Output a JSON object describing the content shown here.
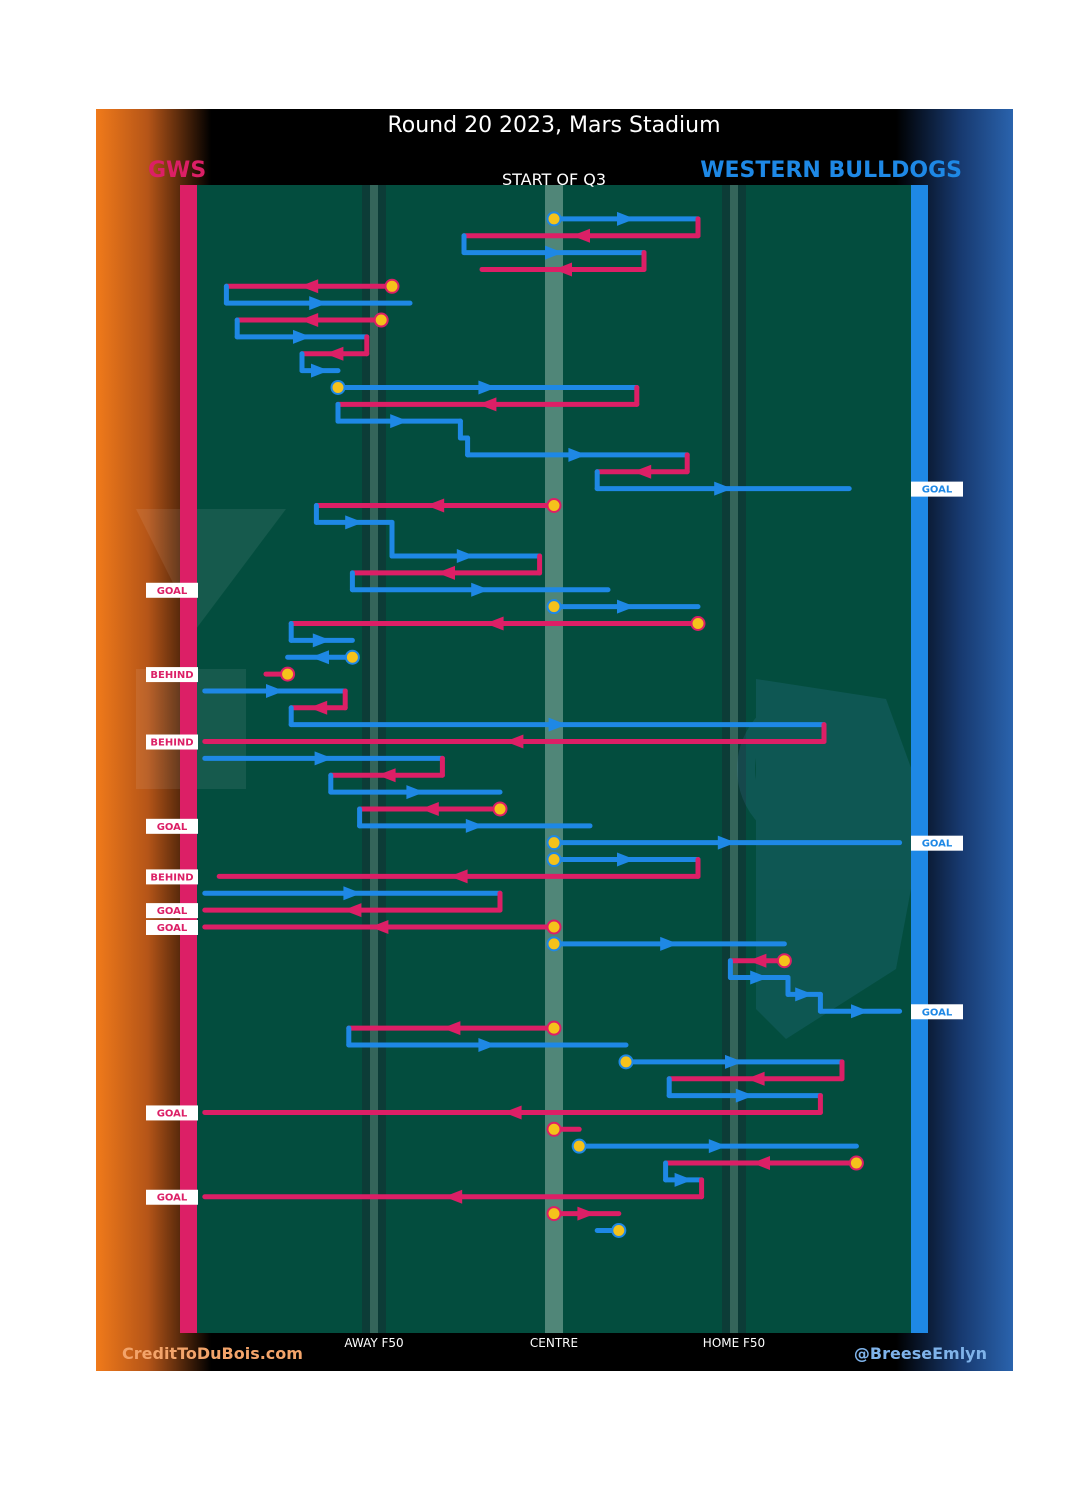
{
  "title": "Round 20 2023, Mars Stadium",
  "home_team": "GWS",
  "away_team": "WESTERN BULLDOGS",
  "start_label": "START OF Q3",
  "credit_left": "CreditToDuBois.com",
  "credit_right": "@BreeseEmlyn",
  "colors": {
    "gws": "#dc1f66",
    "bulldogs": "#1e88e5",
    "field": "#034d3e",
    "ball": "#f5c21b",
    "left_bg": "#f07a1a",
    "right_bg": "#1f5aa6"
  },
  "chart_data": {
    "type": "line",
    "title": "Round 20 2023, Mars Stadium",
    "subtitle": "START OF Q3",
    "xlabel": "",
    "ylabel": "",
    "x_axis_labels": [
      {
        "label": "AWAY F50",
        "x": 50
      },
      {
        "label": "CENTRE",
        "x": 0
      },
      {
        "label": "HOME F50",
        "x": -50
      }
    ],
    "xlim": [
      -100,
      100
    ],
    "y_order": "chain order, top to bottom",
    "series": [
      {
        "name": "GWS",
        "color": "#dc1f66"
      },
      {
        "name": "WESTERN BULLDOGS",
        "color": "#1e88e5"
      }
    ],
    "chains": [
      {
        "start_ball": true,
        "segs": [
          [
            "B",
            0,
            -40,
            1
          ],
          [
            "G",
            -40,
            25,
            2
          ],
          [
            "B",
            25,
            -25,
            3
          ],
          [
            "G",
            -25,
            20,
            4
          ]
        ]
      },
      {
        "start_ball": true,
        "segs": [
          [
            "G",
            45,
            91,
            5
          ],
          [
            "B",
            91,
            40,
            6
          ]
        ]
      },
      {
        "start_ball": true,
        "segs": [
          [
            "G",
            48,
            88,
            7
          ],
          [
            "B",
            88,
            52,
            8
          ],
          [
            "G",
            52,
            70,
            9
          ],
          [
            "B",
            70,
            60,
            10
          ]
        ]
      },
      {
        "start_ball": true,
        "segs": [
          [
            "B",
            60,
            -23,
            11
          ],
          [
            "G",
            -23,
            60,
            12
          ],
          [
            "B",
            60,
            26,
            13
          ],
          [
            "B",
            26,
            24,
            14
          ],
          [
            "B",
            24,
            -37,
            15
          ],
          [
            "G",
            -37,
            -12,
            16
          ],
          [
            "B",
            -12,
            -82,
            17
          ]
        ],
        "end": {
          "label": "GOAL",
          "team": "B"
        }
      },
      {
        "start_ball": true,
        "segs": [
          [
            "G",
            0,
            66,
            18
          ],
          [
            "B",
            66,
            45,
            19
          ],
          [
            "B",
            45,
            45,
            20
          ],
          [
            "B",
            45,
            4,
            21
          ],
          [
            "G",
            4,
            56,
            22
          ],
          [
            "B",
            56,
            -15,
            23
          ]
        ],
        "end": {
          "label": "GOAL",
          "team": "G"
        }
      },
      {
        "start_ball": true,
        "segs": [
          [
            "B",
            0,
            -40,
            24
          ]
        ]
      },
      {
        "start_ball": true,
        "segs": [
          [
            "G",
            -40,
            73,
            25
          ],
          [
            "B",
            73,
            56,
            26
          ]
        ]
      },
      {
        "start_ball": true,
        "segs": [
          [
            "B",
            56,
            74,
            27
          ]
        ]
      },
      {
        "start_ball": true,
        "segs": [
          [
            "G",
            74,
            80,
            28
          ]
        ],
        "end": {
          "label": "BEHIND",
          "team": "G"
        }
      },
      {
        "start_ball": false,
        "segs": [
          [
            "B",
            97,
            58,
            29
          ],
          [
            "G",
            58,
            73,
            30
          ],
          [
            "B",
            73,
            -75,
            31
          ],
          [
            "G",
            -75,
            97,
            32
          ]
        ],
        "end": {
          "label": "BEHIND",
          "team": "G"
        }
      },
      {
        "start_ball": false,
        "segs": [
          [
            "B",
            97,
            31,
            33
          ],
          [
            "G",
            31,
            62,
            34
          ],
          [
            "B",
            62,
            15,
            35
          ]
        ]
      },
      {
        "start_ball": true,
        "segs": [
          [
            "G",
            15,
            54,
            36
          ],
          [
            "B",
            54,
            -10,
            37
          ]
        ],
        "end": {
          "label": "GOAL",
          "team": "G"
        }
      },
      {
        "start_ball": true,
        "segs": [
          [
            "B",
            0,
            -96,
            38
          ]
        ],
        "end": {
          "label": "GOAL",
          "team": "B"
        }
      },
      {
        "start_ball": true,
        "segs": [
          [
            "B",
            0,
            -40,
            39
          ],
          [
            "G",
            -40,
            93,
            40
          ]
        ],
        "end": {
          "label": "BEHIND",
          "team": "G"
        }
      },
      {
        "start_ball": false,
        "segs": [
          [
            "B",
            97,
            15,
            41
          ],
          [
            "G",
            15,
            97,
            42
          ]
        ],
        "end": {
          "label": "GOAL",
          "team": "G"
        }
      },
      {
        "start_ball": true,
        "segs": [
          [
            "G",
            0,
            97,
            43
          ]
        ],
        "end": {
          "label": "GOAL",
          "team": "G"
        }
      },
      {
        "start_ball": true,
        "segs": [
          [
            "B",
            0,
            -64,
            44
          ]
        ]
      },
      {
        "start_ball": true,
        "segs": [
          [
            "G",
            -64,
            -49,
            45
          ],
          [
            "B",
            -49,
            -65,
            46
          ],
          [
            "B",
            -65,
            -74,
            47
          ],
          [
            "B",
            -74,
            -96,
            48
          ]
        ],
        "end": {
          "label": "GOAL",
          "team": "B"
        }
      },
      {
        "start_ball": true,
        "segs": [
          [
            "G",
            0,
            57,
            49
          ],
          [
            "B",
            57,
            -20,
            50
          ]
        ]
      },
      {
        "start_ball": true,
        "segs": [
          [
            "B",
            -20,
            -80,
            51
          ],
          [
            "G",
            -80,
            -32,
            52
          ],
          [
            "B",
            -32,
            -74,
            53
          ],
          [
            "G",
            -74,
            97,
            54
          ]
        ],
        "end": {
          "label": "GOAL",
          "team": "G"
        }
      },
      {
        "start_ball": true,
        "segs": [
          [
            "G",
            0,
            -7,
            55
          ]
        ]
      },
      {
        "start_ball": true,
        "segs": [
          [
            "B",
            -7,
            -84,
            56
          ]
        ]
      },
      {
        "start_ball": true,
        "segs": [
          [
            "G",
            -84,
            -31,
            57
          ],
          [
            "B",
            -31,
            -41,
            58
          ],
          [
            "G",
            -41,
            97,
            59
          ]
        ],
        "end": {
          "label": "GOAL",
          "team": "G"
        }
      },
      {
        "start_ball": true,
        "segs": [
          [
            "G",
            0,
            -18,
            60
          ]
        ]
      },
      {
        "start_ball": true,
        "segs": [
          [
            "B",
            -18,
            -12,
            61
          ]
        ]
      }
    ]
  }
}
